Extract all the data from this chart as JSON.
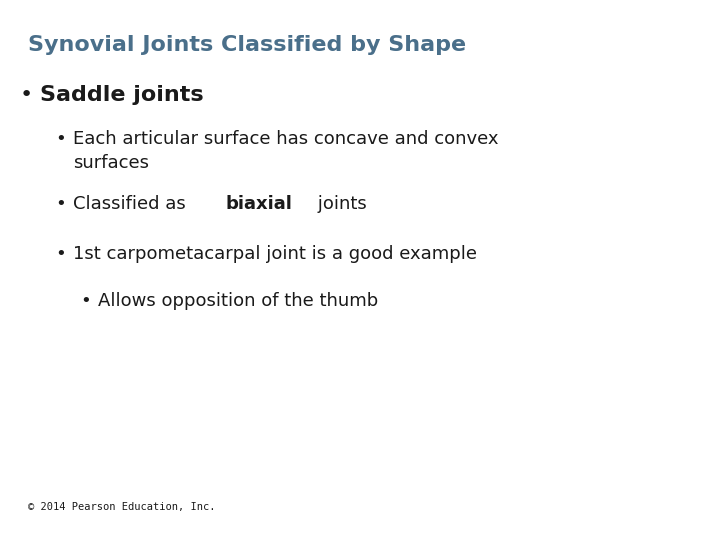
{
  "title": "Synovial Joints Classified by Shape",
  "title_color": "#4a6f8a",
  "title_fontsize": 16,
  "background_color": "#ffffff",
  "text_color": "#1a1a1a",
  "footer": "© 2014 Pearson Education, Inc.",
  "footer_fontsize": 7.5,
  "footer_font": "monospace",
  "bullet1": "Saddle joints",
  "bullet1_fontsize": 16,
  "sub_bullet_fontsize": 13,
  "sub_sub_bullet_fontsize": 13,
  "sub_bullets": [
    "Each articular surface has concave and convex\nsurfaces",
    "Classified as |biaxial| joints",
    "1st carpometacarpal joint is a good example"
  ],
  "sub_sub_bullets": [
    "Allows opposition of the thumb"
  ]
}
